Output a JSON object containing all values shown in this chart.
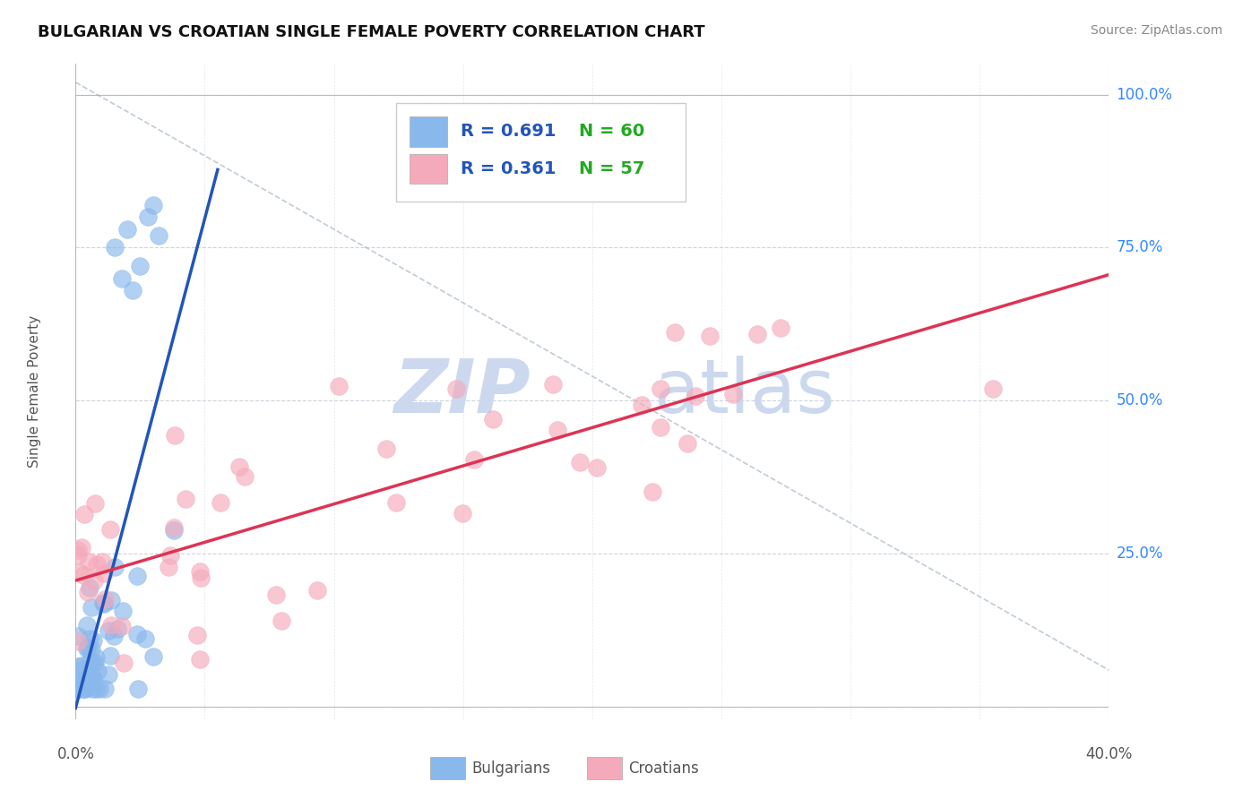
{
  "title": "BULGARIAN VS CROATIAN SINGLE FEMALE POVERTY CORRELATION CHART",
  "source": "Source: ZipAtlas.com",
  "ylabel": "Single Female Poverty",
  "xmin": 0.0,
  "xmax": 0.4,
  "ymin": -0.02,
  "ymax": 1.05,
  "bulgarian_color": "#89b8ec",
  "croatian_color": "#f5aabb",
  "bulgarian_line_color": "#2255bb",
  "croatian_line_color": "#dd3355",
  "ref_line_color": "#99aabb",
  "legend_R_color": "#2255bb",
  "legend_N_color": "#22aa22",
  "bg_color": "#ffffff",
  "plot_bg_color": "#ffffff",
  "bulgarians_R": 0.691,
  "bulgarians_N": 60,
  "croatians_R": 0.361,
  "croatians_N": 57,
  "watermark_line1": "ZIP",
  "watermark_line2": "atlas",
  "watermark_color": "#ccd8ee",
  "grid_color": "#c8d0d8",
  "ytick_values": [
    0.0,
    0.25,
    0.5,
    0.75,
    1.0
  ],
  "ytick_labels": [
    "",
    "25.0%",
    "50.0%",
    "75.0%",
    "100.0%"
  ],
  "xtick_label_left": "0.0%",
  "xtick_label_right": "40.0%"
}
